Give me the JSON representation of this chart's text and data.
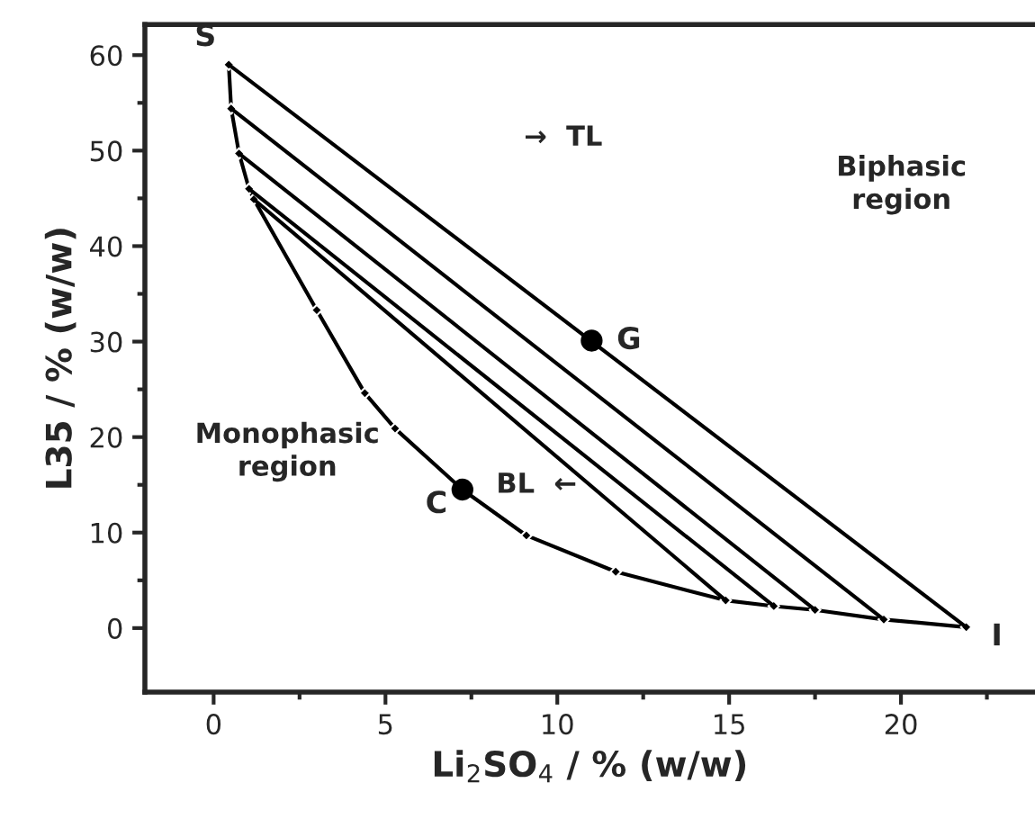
{
  "chart_data": {
    "type": "line",
    "xlabel": "Li$_{2}$SO$_{4}$ / % (w/w)",
    "ylabel": "L35 / % (w/w)",
    "xlim": [
      -2,
      23.9
    ],
    "ylim": [
      -6.7,
      63.2
    ],
    "xticks": [
      0,
      5,
      10,
      15,
      20
    ],
    "yticks": [
      0,
      10,
      20,
      30,
      40,
      50,
      60
    ],
    "grid": false,
    "legend": false,
    "series": [
      {
        "color": "#000000",
        "marker": "diamond",
        "x": [
          0.44,
          0.51,
          0.74,
          1.03,
          1.17,
          3.0,
          4.4,
          5.28,
          7.24,
          9.1,
          11.7,
          14.9,
          16.3,
          17.5,
          19.5,
          21.9
        ],
        "values": [
          59.0,
          54.4,
          49.7,
          46.0,
          44.9,
          33.3,
          24.6,
          20.9,
          14.5,
          9.7,
          5.9,
          2.9,
          2.3,
          1.9,
          0.9,
          0.1
        ]
      },
      {
        "color": "#000000",
        "marker": "none",
        "x": [
          0.44,
          21.9
        ],
        "values": [
          59.0,
          0.1
        ]
      },
      {
        "color": "#000000",
        "marker": "none",
        "x": [
          0.51,
          19.5
        ],
        "values": [
          54.4,
          0.9
        ]
      },
      {
        "color": "#000000",
        "marker": "none",
        "x": [
          0.74,
          17.5
        ],
        "values": [
          49.7,
          1.9
        ]
      },
      {
        "color": "#000000",
        "marker": "none",
        "x": [
          1.03,
          16.3
        ],
        "values": [
          46.0,
          2.3
        ]
      },
      {
        "color": "#000000",
        "marker": "none",
        "x": [
          1.17,
          14.9
        ],
        "values": [
          44.9,
          2.9
        ]
      },
      {
        "type": "scatter",
        "color": "#000000",
        "marker": "circle",
        "x": [
          11.0,
          7.24
        ],
        "values": [
          30.1,
          14.5
        ]
      }
    ],
    "annotations": [
      {
        "text": "S",
        "x": 0.44,
        "y": 59.0
      },
      {
        "text": "I",
        "x": 21.9,
        "y": 0.1
      },
      {
        "text": "G",
        "x": 11.0,
        "y": 30.1
      },
      {
        "text": "C",
        "x": 7.24,
        "y": 14.5
      },
      "→  TL",
      "BL  ←",
      "Biphasic\nregion",
      "Monophasic\nregion"
    ]
  }
}
